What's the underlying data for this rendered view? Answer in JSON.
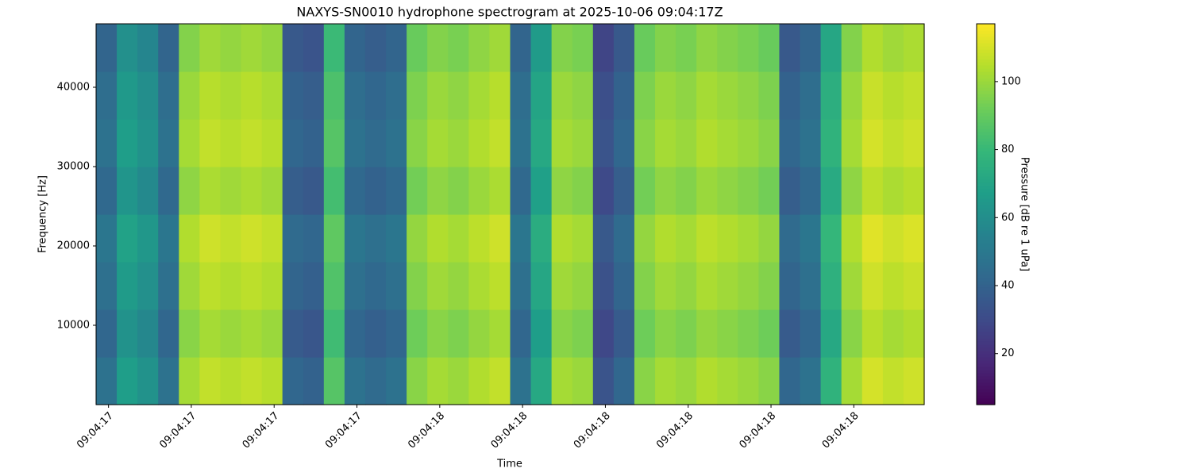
{
  "chart_data": {
    "type": "heatmap",
    "title": "NAXYS-SN0010 hydrophone spectrogram at 2025-10-06 09:04:17Z",
    "xlabel": "Time",
    "ylabel": "Frequency [Hz]",
    "colorbar_label": "Pressure [dB re 1 uPa]",
    "colormap": "viridis",
    "xlim": [
      0,
      10
    ],
    "xticks": [
      {
        "value": 0.15,
        "label": "09:04:17"
      },
      {
        "value": 1.15,
        "label": "09:04:17"
      },
      {
        "value": 2.15,
        "label": "09:04:17"
      },
      {
        "value": 3.15,
        "label": "09:04:17"
      },
      {
        "value": 4.15,
        "label": "09:04:18"
      },
      {
        "value": 5.15,
        "label": "09:04:18"
      },
      {
        "value": 6.15,
        "label": "09:04:18"
      },
      {
        "value": 7.15,
        "label": "09:04:18"
      },
      {
        "value": 8.15,
        "label": "09:04:18"
      },
      {
        "value": 9.15,
        "label": "09:04:18"
      }
    ],
    "ylim": [
      0,
      48000
    ],
    "yticks": [
      10000,
      20000,
      30000,
      40000
    ],
    "clim": [
      5,
      117
    ],
    "cticks": [
      20,
      40,
      60,
      80,
      100
    ],
    "z": [
      [
        47,
        67,
        62,
        47,
        102,
        107,
        105,
        107,
        105,
        42,
        40,
        87,
        47,
        44,
        47,
        97,
        102,
        100,
        104,
        107,
        47,
        72,
        102,
        100,
        34,
        42,
        97,
        102,
        100,
        104,
        102,
        100,
        97,
        42,
        47,
        77,
        102,
        110,
        107,
        109
      ],
      [
        42,
        62,
        57,
        42,
        97,
        102,
        100,
        102,
        100,
        37,
        35,
        82,
        42,
        39,
        42,
        92,
        97,
        95,
        99,
        102,
        42,
        67,
        97,
        95,
        29,
        37,
        92,
        97,
        95,
        99,
        97,
        95,
        92,
        37,
        42,
        72,
        97,
        105,
        102,
        104
      ],
      [
        46,
        66,
        61,
        46,
        101,
        106,
        104,
        106,
        104,
        41,
        39,
        86,
        46,
        43,
        46,
        96,
        101,
        99,
        103,
        106,
        46,
        71,
        101,
        99,
        33,
        41,
        96,
        101,
        99,
        103,
        101,
        99,
        96,
        41,
        46,
        76,
        101,
        109,
        106,
        108
      ],
      [
        49,
        69,
        64,
        49,
        104,
        109,
        107,
        109,
        107,
        44,
        42,
        89,
        49,
        46,
        49,
        99,
        104,
        102,
        106,
        109,
        49,
        74,
        104,
        102,
        36,
        44,
        99,
        104,
        102,
        106,
        104,
        102,
        99,
        44,
        49,
        79,
        104,
        112,
        109,
        111
      ],
      [
        43,
        63,
        58,
        43,
        98,
        103,
        101,
        103,
        101,
        38,
        36,
        83,
        43,
        40,
        43,
        93,
        98,
        96,
        100,
        103,
        43,
        68,
        98,
        96,
        30,
        38,
        93,
        98,
        96,
        100,
        98,
        96,
        93,
        38,
        43,
        73,
        98,
        106,
        103,
        105
      ],
      [
        47,
        67,
        62,
        47,
        102,
        107,
        105,
        107,
        105,
        42,
        40,
        87,
        47,
        44,
        47,
        97,
        102,
        100,
        104,
        107,
        47,
        72,
        102,
        100,
        34,
        42,
        97,
        102,
        100,
        104,
        102,
        100,
        97,
        42,
        47,
        77,
        102,
        110,
        107,
        109
      ],
      [
        45,
        65,
        60,
        45,
        100,
        105,
        103,
        105,
        103,
        40,
        38,
        85,
        45,
        42,
        45,
        95,
        100,
        98,
        102,
        105,
        45,
        70,
        100,
        98,
        32,
        40,
        95,
        100,
        98,
        102,
        100,
        98,
        95,
        40,
        45,
        75,
        100,
        108,
        105,
        107
      ],
      [
        41,
        61,
        56,
        41,
        96,
        101,
        99,
        101,
        99,
        36,
        34,
        81,
        41,
        38,
        41,
        91,
        96,
        94,
        98,
        101,
        41,
        66,
        96,
        94,
        28,
        36,
        91,
        96,
        94,
        98,
        96,
        94,
        91,
        36,
        41,
        71,
        96,
        104,
        101,
        103
      ]
    ]
  }
}
